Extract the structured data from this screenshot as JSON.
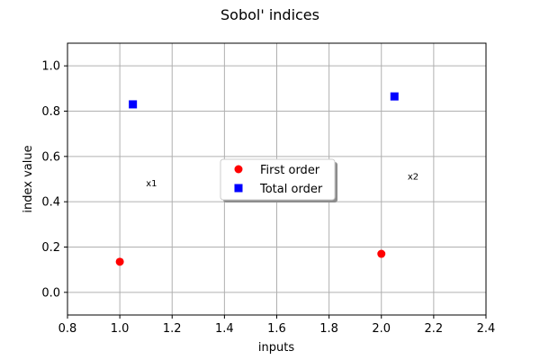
{
  "chart_data": {
    "type": "scatter",
    "title": "Sobol' indices",
    "xlabel": "inputs",
    "ylabel": "index value",
    "xlim": [
      0.8,
      2.4
    ],
    "ylim": [
      -0.1,
      1.1
    ],
    "xticks": [
      "0.8",
      "1.0",
      "1.2",
      "1.4",
      "1.6",
      "1.8",
      "2.0",
      "2.2",
      "2.4"
    ],
    "yticks": [
      "0.0",
      "0.2",
      "0.4",
      "0.6",
      "0.8",
      "1.0"
    ],
    "grid": true,
    "legend_position": "center",
    "series": [
      {
        "name": "First order",
        "marker": "circle",
        "color": "#ff0000",
        "points": [
          {
            "x": 1.0,
            "y": 0.135
          },
          {
            "x": 2.0,
            "y": 0.17
          }
        ]
      },
      {
        "name": "Total order",
        "marker": "square",
        "color": "#0000ff",
        "points": [
          {
            "x": 1.05,
            "y": 0.83
          },
          {
            "x": 2.05,
            "y": 0.865
          }
        ]
      }
    ],
    "annotations": [
      {
        "text": "x1",
        "x": 1.1,
        "y": 0.48
      },
      {
        "text": "x2",
        "x": 2.1,
        "y": 0.51
      }
    ]
  }
}
